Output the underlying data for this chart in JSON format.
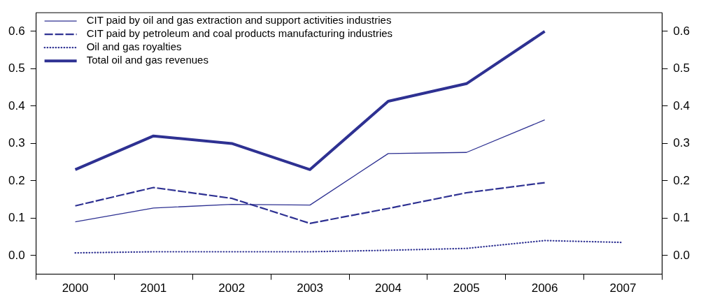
{
  "chart_data": {
    "type": "line",
    "categories": [
      "2000",
      "2001",
      "2002",
      "2003",
      "2004",
      "2005",
      "2006",
      "2007"
    ],
    "series": [
      {
        "name": "CIT paid by oil and gas extraction and support activities industries",
        "color": "#2e3192",
        "line_style": "solid",
        "values": [
          0.09,
          0.127,
          0.137,
          0.135,
          0.273,
          0.276,
          0.363,
          null
        ]
      },
      {
        "name": "CIT paid by petroleum and coal products manufacturing industries",
        "color": "#2e3192",
        "line_style": "dashed",
        "values": [
          0.133,
          0.182,
          0.153,
          0.086,
          0.126,
          0.168,
          0.195,
          null
        ]
      },
      {
        "name": "Oil and gas royalties",
        "color": "#2e3192",
        "line_style": "dotted",
        "values": [
          0.007,
          0.01,
          0.01,
          0.01,
          0.014,
          0.019,
          0.04,
          0.035
        ]
      },
      {
        "name": "Total oil and gas revenues",
        "color": "#2e3192",
        "line_style": "solid",
        "values": [
          0.23,
          0.32,
          0.3,
          0.23,
          0.413,
          0.46,
          0.6,
          null
        ]
      }
    ],
    "ylim": [
      -0.05,
      0.65
    ],
    "yticks": [
      {
        "value": 0,
        "label": "0.0"
      },
      {
        "value": 0.1,
        "label": "0.1"
      },
      {
        "value": 0.2,
        "label": "0.2"
      },
      {
        "value": 0.3,
        "label": "0.3"
      },
      {
        "value": 0.4,
        "label": "0.4"
      },
      {
        "value": 0.5,
        "label": "0.5"
      },
      {
        "value": 0.6,
        "label": "0.6"
      }
    ],
    "y2lim": [
      -0.05,
      0.65
    ],
    "y2ticks": [
      {
        "value": 0,
        "label": "0.0"
      },
      {
        "value": 0.1,
        "label": "0.1"
      },
      {
        "value": 0.2,
        "label": "0.2"
      },
      {
        "value": 0.3,
        "label": "0.3"
      },
      {
        "value": 0.4,
        "label": "0.4"
      },
      {
        "value": 0.5,
        "label": "0.5"
      },
      {
        "value": 0.6,
        "label": "0.6"
      }
    ],
    "grid": false,
    "legend": "top left",
    "marker": "none"
  }
}
